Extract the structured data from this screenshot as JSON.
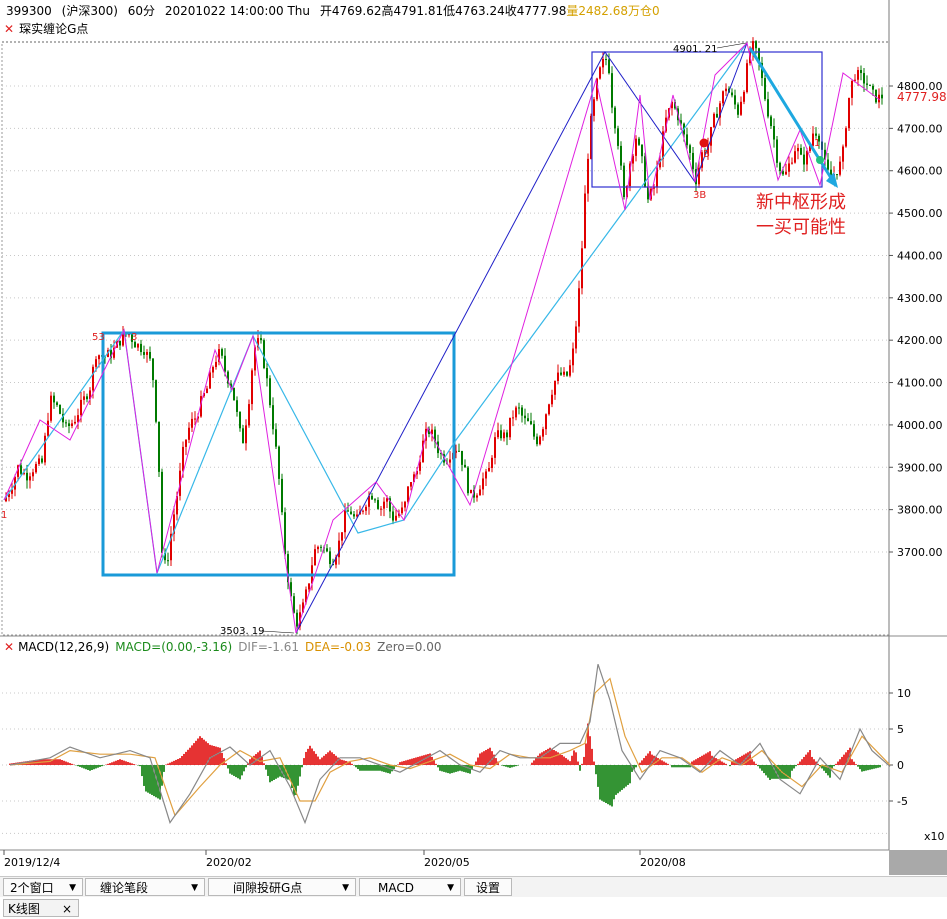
{
  "header": {
    "symbol": "399300",
    "name": "(沪深300)",
    "period": "60分",
    "datetime": "20201022 14:00:00 Thu",
    "open": "开4769.62",
    "high": "高4791.81",
    "low": "低4763.24",
    "close": "收4777.98",
    "volume": "量2482.68万",
    "position": "仓0"
  },
  "indicator_legend": {
    "close_icon": "close-x-icon",
    "label": "琛实缠论G点"
  },
  "macd_legend": {
    "close_icon": "close-x-icon",
    "name": "MACD(12,26,9)",
    "macd": "MACD=(0.00,-3.16)",
    "dif": "DIF=-1.61",
    "dea": "DEA=-0.03",
    "zero": "Zero=0.00"
  },
  "annotations": {
    "high_label": "4901. 21",
    "low_label": "3503. 19",
    "left_top_label": "53",
    "left_top_label2": "3",
    "b3_label": "3B",
    "b_label_red": "B",
    "one_label": "1",
    "s_label": "1",
    "note_line1": "新中枢形成",
    "note_line2": "一买可能性",
    "colors": {
      "up": "#e00000",
      "down": "#007a00",
      "pen_magenta": "#e020e0",
      "segment_cyan": "#38b8e8",
      "segment_blue": "#2020c8",
      "box_cyan": "#1a9ad8",
      "box_blue": "#3030d0",
      "note_red": "#e02020",
      "dif": "#888888",
      "dea": "#e0a040"
    }
  },
  "chart_data": [
    {
      "type": "candlestick",
      "title": "",
      "y_ticks": [
        "4800.00",
        "4700.00",
        "4600.00",
        "4500.00",
        "4400.00",
        "4300.00",
        "4200.00",
        "4100.00",
        "4000.00",
        "3900.00",
        "3800.00",
        "3700.00"
      ],
      "ylim": [
        3490,
        4920
      ],
      "last_price": "4777.98",
      "x_ticks": [
        "2019/12/4",
        "2020/02",
        "2020/05",
        "2020/08"
      ],
      "close_path": [
        [
          0,
          3820
        ],
        [
          8,
          3860
        ],
        [
          14,
          3900
        ],
        [
          22,
          3880
        ],
        [
          30,
          3900
        ],
        [
          38,
          3910
        ],
        [
          46,
          4060
        ],
        [
          54,
          4040
        ],
        [
          62,
          3990
        ],
        [
          70,
          4010
        ],
        [
          78,
          4050
        ],
        [
          86,
          4090
        ],
        [
          92,
          4170
        ],
        [
          100,
          4160
        ],
        [
          108,
          4170
        ],
        [
          116,
          4200
        ],
        [
          124,
          4218
        ],
        [
          132,
          4190
        ],
        [
          140,
          4180
        ],
        [
          148,
          4140
        ],
        [
          154,
          3960
        ],
        [
          158,
          3700
        ],
        [
          162,
          3658
        ],
        [
          168,
          3760
        ],
        [
          174,
          3850
        ],
        [
          180,
          3950
        ],
        [
          186,
          4000
        ],
        [
          192,
          4020
        ],
        [
          198,
          4060
        ],
        [
          204,
          4090
        ],
        [
          210,
          4150
        ],
        [
          216,
          4170
        ],
        [
          222,
          4120
        ],
        [
          228,
          4090
        ],
        [
          234,
          4010
        ],
        [
          238,
          3950
        ],
        [
          244,
          4040
        ],
        [
          250,
          4180
        ],
        [
          256,
          4200
        ],
        [
          262,
          4120
        ],
        [
          268,
          4020
        ],
        [
          274,
          3900
        ],
        [
          280,
          3720
        ],
        [
          286,
          3600
        ],
        [
          292,
          3530
        ],
        [
          298,
          3560
        ],
        [
          304,
          3620
        ],
        [
          310,
          3700
        ],
        [
          316,
          3720
        ],
        [
          322,
          3700
        ],
        [
          328,
          3680
        ],
        [
          334,
          3710
        ],
        [
          340,
          3780
        ],
        [
          346,
          3800
        ],
        [
          352,
          3770
        ],
        [
          358,
          3800
        ],
        [
          364,
          3830
        ],
        [
          370,
          3840
        ],
        [
          376,
          3800
        ],
        [
          382,
          3830
        ],
        [
          388,
          3780
        ],
        [
          394,
          3790
        ],
        [
          400,
          3800
        ],
        [
          406,
          3870
        ],
        [
          412,
          3880
        ],
        [
          418,
          3950
        ],
        [
          424,
          3990
        ],
        [
          430,
          3970
        ],
        [
          436,
          3930
        ],
        [
          442,
          3920
        ],
        [
          448,
          3940
        ],
        [
          454,
          3950
        ],
        [
          460,
          3900
        ],
        [
          466,
          3830
        ],
        [
          472,
          3840
        ],
        [
          478,
          3870
        ],
        [
          484,
          3880
        ],
        [
          490,
          3960
        ],
        [
          496,
          3980
        ],
        [
          502,
          3970
        ],
        [
          508,
          4020
        ],
        [
          514,
          4040
        ],
        [
          520,
          4010
        ],
        [
          526,
          4000
        ],
        [
          532,
          3960
        ],
        [
          538,
          3990
        ],
        [
          544,
          4050
        ],
        [
          550,
          4100
        ],
        [
          556,
          4120
        ],
        [
          562,
          4110
        ],
        [
          568,
          4150
        ],
        [
          574,
          4280
        ],
        [
          578,
          4420
        ],
        [
          582,
          4580
        ],
        [
          586,
          4700
        ],
        [
          590,
          4760
        ],
        [
          594,
          4820
        ],
        [
          598,
          4850
        ],
        [
          604,
          4870
        ],
        [
          608,
          4760
        ],
        [
          614,
          4670
        ],
        [
          620,
          4530
        ],
        [
          626,
          4620
        ],
        [
          632,
          4680
        ],
        [
          638,
          4620
        ],
        [
          644,
          4530
        ],
        [
          650,
          4560
        ],
        [
          656,
          4640
        ],
        [
          662,
          4720
        ],
        [
          668,
          4760
        ],
        [
          674,
          4730
        ],
        [
          680,
          4680
        ],
        [
          686,
          4640
        ],
        [
          692,
          4580
        ],
        [
          698,
          4640
        ],
        [
          704,
          4660
        ],
        [
          710,
          4720
        ],
        [
          716,
          4760
        ],
        [
          722,
          4800
        ],
        [
          728,
          4770
        ],
        [
          734,
          4740
        ],
        [
          740,
          4800
        ],
        [
          746,
          4880
        ],
        [
          750,
          4895
        ],
        [
          756,
          4840
        ],
        [
          762,
          4760
        ],
        [
          768,
          4700
        ],
        [
          774,
          4620
        ],
        [
          780,
          4580
        ],
        [
          786,
          4620
        ],
        [
          792,
          4660
        ],
        [
          798,
          4620
        ],
        [
          804,
          4640
        ],
        [
          810,
          4700
        ],
        [
          816,
          4680
        ],
        [
          820,
          4620
        ],
        [
          826,
          4580
        ],
        [
          832,
          4600
        ],
        [
          838,
          4620
        ],
        [
          844,
          4760
        ],
        [
          850,
          4830
        ],
        [
          856,
          4820
        ],
        [
          862,
          4810
        ],
        [
          868,
          4780
        ],
        [
          874,
          4770
        ],
        [
          880,
          4778
        ]
      ]
    },
    {
      "type": "macd",
      "y_ticks": [
        "10",
        "5",
        "0",
        "-5"
      ],
      "y_scale_label": "x10",
      "ylim": [
        -10,
        14
      ],
      "dif": [
        [
          0,
          0
        ],
        [
          40,
          1
        ],
        [
          60,
          2.5
        ],
        [
          90,
          1
        ],
        [
          120,
          2
        ],
        [
          140,
          1
        ],
        [
          160,
          -8
        ],
        [
          180,
          -4
        ],
        [
          200,
          1
        ],
        [
          220,
          2.5
        ],
        [
          240,
          0
        ],
        [
          260,
          2
        ],
        [
          280,
          -3
        ],
        [
          295,
          -8
        ],
        [
          310,
          -2
        ],
        [
          330,
          1
        ],
        [
          350,
          1
        ],
        [
          370,
          0
        ],
        [
          390,
          -1
        ],
        [
          410,
          0.5
        ],
        [
          430,
          2
        ],
        [
          450,
          0
        ],
        [
          470,
          -1
        ],
        [
          490,
          2
        ],
        [
          510,
          1
        ],
        [
          530,
          1
        ],
        [
          550,
          3
        ],
        [
          570,
          3
        ],
        [
          580,
          6
        ],
        [
          588,
          14
        ],
        [
          600,
          9
        ],
        [
          612,
          2
        ],
        [
          630,
          -2
        ],
        [
          650,
          2
        ],
        [
          670,
          1
        ],
        [
          690,
          -1
        ],
        [
          710,
          2
        ],
        [
          730,
          0
        ],
        [
          750,
          3
        ],
        [
          770,
          -2
        ],
        [
          790,
          -4
        ],
        [
          810,
          1
        ],
        [
          830,
          -2
        ],
        [
          850,
          5
        ],
        [
          862,
          2
        ],
        [
          880,
          -0.2
        ]
      ],
      "dea": [
        [
          0,
          0
        ],
        [
          40,
          0.5
        ],
        [
          60,
          2
        ],
        [
          90,
          1.5
        ],
        [
          120,
          1.5
        ],
        [
          145,
          1
        ],
        [
          165,
          -7
        ],
        [
          190,
          -3
        ],
        [
          210,
          0
        ],
        [
          230,
          2
        ],
        [
          250,
          0.5
        ],
        [
          270,
          1
        ],
        [
          290,
          -5
        ],
        [
          305,
          -5
        ],
        [
          320,
          -1
        ],
        [
          340,
          0.5
        ],
        [
          360,
          1
        ],
        [
          380,
          0
        ],
        [
          400,
          -0.5
        ],
        [
          420,
          0.5
        ],
        [
          440,
          1.5
        ],
        [
          460,
          0
        ],
        [
          480,
          -0.5
        ],
        [
          500,
          1.5
        ],
        [
          520,
          1
        ],
        [
          540,
          1
        ],
        [
          560,
          2
        ],
        [
          575,
          3
        ],
        [
          585,
          10
        ],
        [
          600,
          12
        ],
        [
          615,
          4
        ],
        [
          632,
          -1
        ],
        [
          652,
          1
        ],
        [
          672,
          1
        ],
        [
          692,
          -1
        ],
        [
          712,
          1
        ],
        [
          732,
          0
        ],
        [
          752,
          2
        ],
        [
          772,
          -1
        ],
        [
          792,
          -3
        ],
        [
          812,
          0
        ],
        [
          832,
          -1
        ],
        [
          852,
          4
        ],
        [
          866,
          2
        ],
        [
          880,
          0
        ]
      ]
    }
  ],
  "toolbar": {
    "windows": "2个窗口",
    "pen": "缠论笔段",
    "gpoint": "间隙投研G点",
    "macd": "MACD",
    "settings": "设置"
  },
  "tabs": {
    "kline": "K线图",
    "close": "×"
  }
}
